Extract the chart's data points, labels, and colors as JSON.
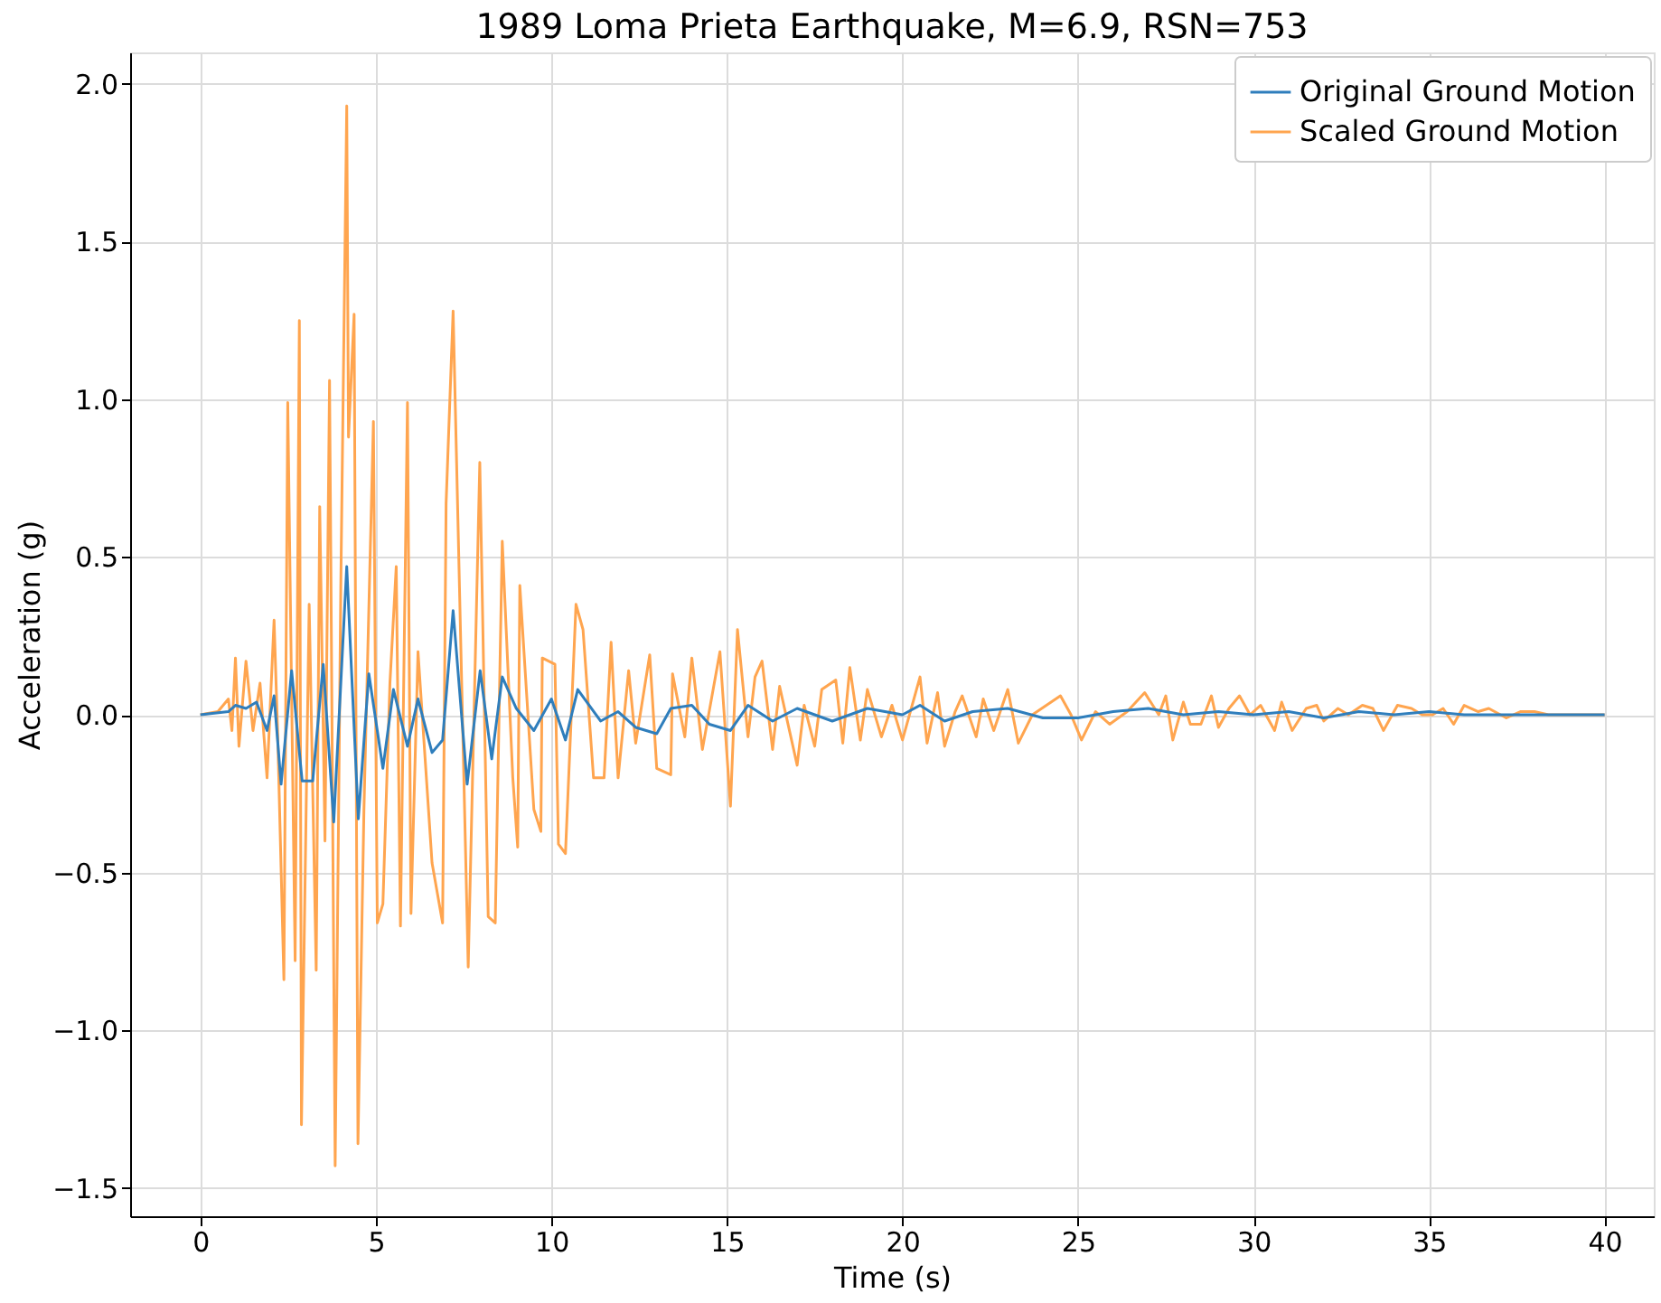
{
  "chart_data": {
    "type": "line",
    "title": "1989 Loma Prieta Earthquake, M=6.9,  RSN=753",
    "xlabel": "Time (s)",
    "ylabel": "Acceleration (g)",
    "xlim": [
      -2,
      41.4
    ],
    "ylim": [
      -1.59,
      2.1
    ],
    "xticks": [
      0,
      5,
      10,
      15,
      20,
      25,
      30,
      35,
      40
    ],
    "yticks": [
      {
        "value": -1.5,
        "label": "−1.5"
      },
      {
        "value": -1.0,
        "label": "−1.0"
      },
      {
        "value": -0.5,
        "label": "−0.5"
      },
      {
        "value": 0,
        "label": "0.0"
      },
      {
        "value": 0.5,
        "label": "0.5"
      },
      {
        "value": 1.0,
        "label": "1.0"
      },
      {
        "value": 1.5,
        "label": "1.5"
      },
      {
        "value": 2.0,
        "label": "2.0"
      }
    ],
    "grid": true,
    "legend": "top right",
    "line_style": "solid",
    "marker": "none",
    "series": [
      {
        "name": "Original Ground Motion",
        "color": "#2f7ebc",
        "x": [
          0,
          0.8,
          1.0,
          1.3,
          1.6,
          1.9,
          2.1,
          2.3,
          2.6,
          2.9,
          3.2,
          3.5,
          3.8,
          4.17,
          4.5,
          4.8,
          5.2,
          5.5,
          5.9,
          6.2,
          6.6,
          6.9,
          7.2,
          7.6,
          7.97,
          8.3,
          8.6,
          9.0,
          9.5,
          10.0,
          10.4,
          10.75,
          11.4,
          11.9,
          12.4,
          13.0,
          13.4,
          14.0,
          14.5,
          15.1,
          15.6,
          16.3,
          17.0,
          18.0,
          19.0,
          20.0,
          20.5,
          21.2,
          22.0,
          23.0,
          24.0,
          25.0,
          26.0,
          27.0,
          28.0,
          29.0,
          30.0,
          31.0,
          32.0,
          33.0,
          34.0,
          35.0,
          36.0,
          37.0,
          38.0,
          39.0,
          40.0
        ],
        "values": [
          0,
          0.01,
          0.03,
          0.02,
          0.04,
          -0.05,
          0.06,
          -0.22,
          0.14,
          -0.21,
          -0.21,
          0.16,
          -0.34,
          0.47,
          -0.33,
          0.13,
          -0.17,
          0.08,
          -0.1,
          0.05,
          -0.12,
          -0.08,
          0.33,
          -0.22,
          0.14,
          -0.14,
          0.12,
          0.02,
          -0.05,
          0.05,
          -0.08,
          0.08,
          -0.02,
          0.01,
          -0.04,
          -0.06,
          0.02,
          0.03,
          -0.03,
          -0.05,
          0.03,
          -0.02,
          0.02,
          -0.02,
          0.02,
          0.0,
          0.03,
          -0.02,
          0.01,
          0.02,
          -0.01,
          -0.01,
          0.01,
          0.02,
          0.0,
          0.01,
          0.0,
          0.01,
          -0.01,
          0.01,
          0.0,
          0.01,
          0.0,
          0.0,
          0.0,
          0.0,
          0.0
        ]
      },
      {
        "name": "Scaled Ground Motion",
        "color": "#ffa54f",
        "x": [
          0,
          0.5,
          0.8,
          0.9,
          1.0,
          1.1,
          1.3,
          1.5,
          1.7,
          1.9,
          2.1,
          2.2,
          2.38,
          2.49,
          2.7,
          2.82,
          2.88,
          3.1,
          3.3,
          3.4,
          3.55,
          3.68,
          3.84,
          4.0,
          4.17,
          4.22,
          4.38,
          4.49,
          4.66,
          4.93,
          5.04,
          5.2,
          5.4,
          5.58,
          5.7,
          5.9,
          6.0,
          6.2,
          6.6,
          6.9,
          7.0,
          7.2,
          7.63,
          7.96,
          8.2,
          8.4,
          8.6,
          8.9,
          9.04,
          9.1,
          9.5,
          9.7,
          9.74,
          10.1,
          10.2,
          10.4,
          10.7,
          10.9,
          11.2,
          11.5,
          11.7,
          11.9,
          12.2,
          12.4,
          12.8,
          13.0,
          13.4,
          13.45,
          13.8,
          14.0,
          14.3,
          14.8,
          15.1,
          15.3,
          15.6,
          15.8,
          16.0,
          16.3,
          16.5,
          17.0,
          17.2,
          17.5,
          17.7,
          18.1,
          18.3,
          18.5,
          18.8,
          19.0,
          19.4,
          19.7,
          20.0,
          20.5,
          20.7,
          21.0,
          21.2,
          21.5,
          21.7,
          22.1,
          22.3,
          22.6,
          23.0,
          23.3,
          23.7,
          24.1,
          24.5,
          24.8,
          25.1,
          25.5,
          25.9,
          26.4,
          26.9,
          27.3,
          27.5,
          27.7,
          28.0,
          28.2,
          28.5,
          28.8,
          29.0,
          29.3,
          29.6,
          29.9,
          30.2,
          30.6,
          30.8,
          31.1,
          31.5,
          31.8,
          32.0,
          32.4,
          32.7,
          33.1,
          33.4,
          33.7,
          34.1,
          34.5,
          34.8,
          35.1,
          35.4,
          35.7,
          36.0,
          36.4,
          36.7,
          37.2,
          37.6,
          38.0,
          38.4,
          38.9,
          40.0
        ],
        "values": [
          0,
          0.01,
          0.05,
          -0.05,
          0.18,
          -0.1,
          0.17,
          -0.05,
          0.1,
          -0.2,
          0.3,
          -0.05,
          -0.84,
          0.99,
          -0.78,
          1.25,
          -1.3,
          0.35,
          -0.81,
          0.66,
          -0.4,
          1.06,
          -1.43,
          0.4,
          1.93,
          0.88,
          1.27,
          -1.36,
          -0.3,
          0.93,
          -0.66,
          -0.6,
          0.1,
          0.47,
          -0.67,
          0.99,
          -0.63,
          0.2,
          -0.47,
          -0.66,
          0.67,
          1.28,
          -0.8,
          0.8,
          -0.64,
          -0.66,
          0.55,
          -0.2,
          -0.42,
          0.41,
          -0.3,
          -0.37,
          0.18,
          0.16,
          -0.41,
          -0.44,
          0.35,
          0.27,
          -0.2,
          -0.2,
          0.23,
          -0.2,
          0.14,
          -0.09,
          0.19,
          -0.17,
          -0.19,
          0.13,
          -0.07,
          0.18,
          -0.11,
          0.2,
          -0.29,
          0.27,
          -0.07,
          0.12,
          0.17,
          -0.11,
          0.09,
          -0.16,
          0.03,
          -0.1,
          0.08,
          0.11,
          -0.09,
          0.15,
          -0.08,
          0.08,
          -0.07,
          0.03,
          -0.08,
          0.12,
          -0.09,
          0.07,
          -0.1,
          0.01,
          0.06,
          -0.07,
          0.05,
          -0.05,
          0.08,
          -0.09,
          0.0,
          0.03,
          0.06,
          0.0,
          -0.08,
          0.01,
          -0.03,
          0.01,
          0.07,
          0.0,
          0.06,
          -0.08,
          0.04,
          -0.03,
          -0.03,
          0.06,
          -0.04,
          0.02,
          0.06,
          0.0,
          0.03,
          -0.05,
          0.04,
          -0.05,
          0.02,
          0.03,
          -0.02,
          0.02,
          0.0,
          0.03,
          0.02,
          -0.05,
          0.03,
          0.02,
          0.0,
          0.0,
          0.02,
          -0.03,
          0.03,
          0.01,
          0.02,
          -0.01,
          0.01,
          0.01,
          0.0,
          0.0,
          0.0
        ]
      }
    ]
  }
}
